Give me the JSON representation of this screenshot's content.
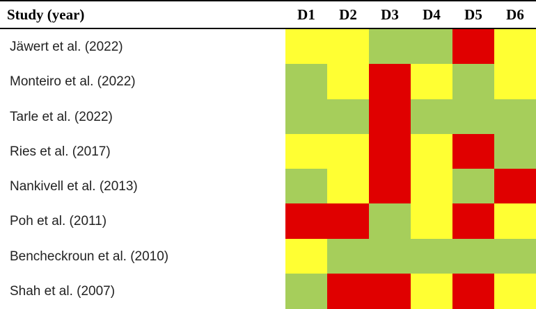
{
  "header": {
    "study_column": "Study (year)"
  },
  "colors": {
    "low": "#A6CE5B",
    "some": "#FFFF33",
    "high": "#E00000"
  },
  "chart_data": {
    "type": "heatmap",
    "columns": [
      "D1",
      "D2",
      "D3",
      "D4",
      "D5",
      "D6"
    ],
    "rows": [
      {
        "study": "Jäwert et al. (2022)",
        "ratings": [
          "some",
          "some",
          "low",
          "low",
          "high",
          "some"
        ]
      },
      {
        "study": "Monteiro et al. (2022)",
        "ratings": [
          "low",
          "some",
          "high",
          "some",
          "low",
          "some"
        ]
      },
      {
        "study": "Tarle et al. (2022)",
        "ratings": [
          "low",
          "low",
          "high",
          "low",
          "low",
          "low"
        ]
      },
      {
        "study": "Ries et al. (2017)",
        "ratings": [
          "some",
          "some",
          "high",
          "some",
          "high",
          "low"
        ]
      },
      {
        "study": "Nankivell et al. (2013)",
        "ratings": [
          "low",
          "some",
          "high",
          "some",
          "low",
          "high"
        ]
      },
      {
        "study": "Poh et al. (2011)",
        "ratings": [
          "high",
          "high",
          "low",
          "some",
          "high",
          "some"
        ]
      },
      {
        "study": "Bencheckroun et al. (2010)",
        "ratings": [
          "some",
          "low",
          "low",
          "low",
          "low",
          "low"
        ]
      },
      {
        "study": "Shah et al. (2007)",
        "ratings": [
          "low",
          "high",
          "high",
          "some",
          "high",
          "some"
        ]
      }
    ]
  }
}
